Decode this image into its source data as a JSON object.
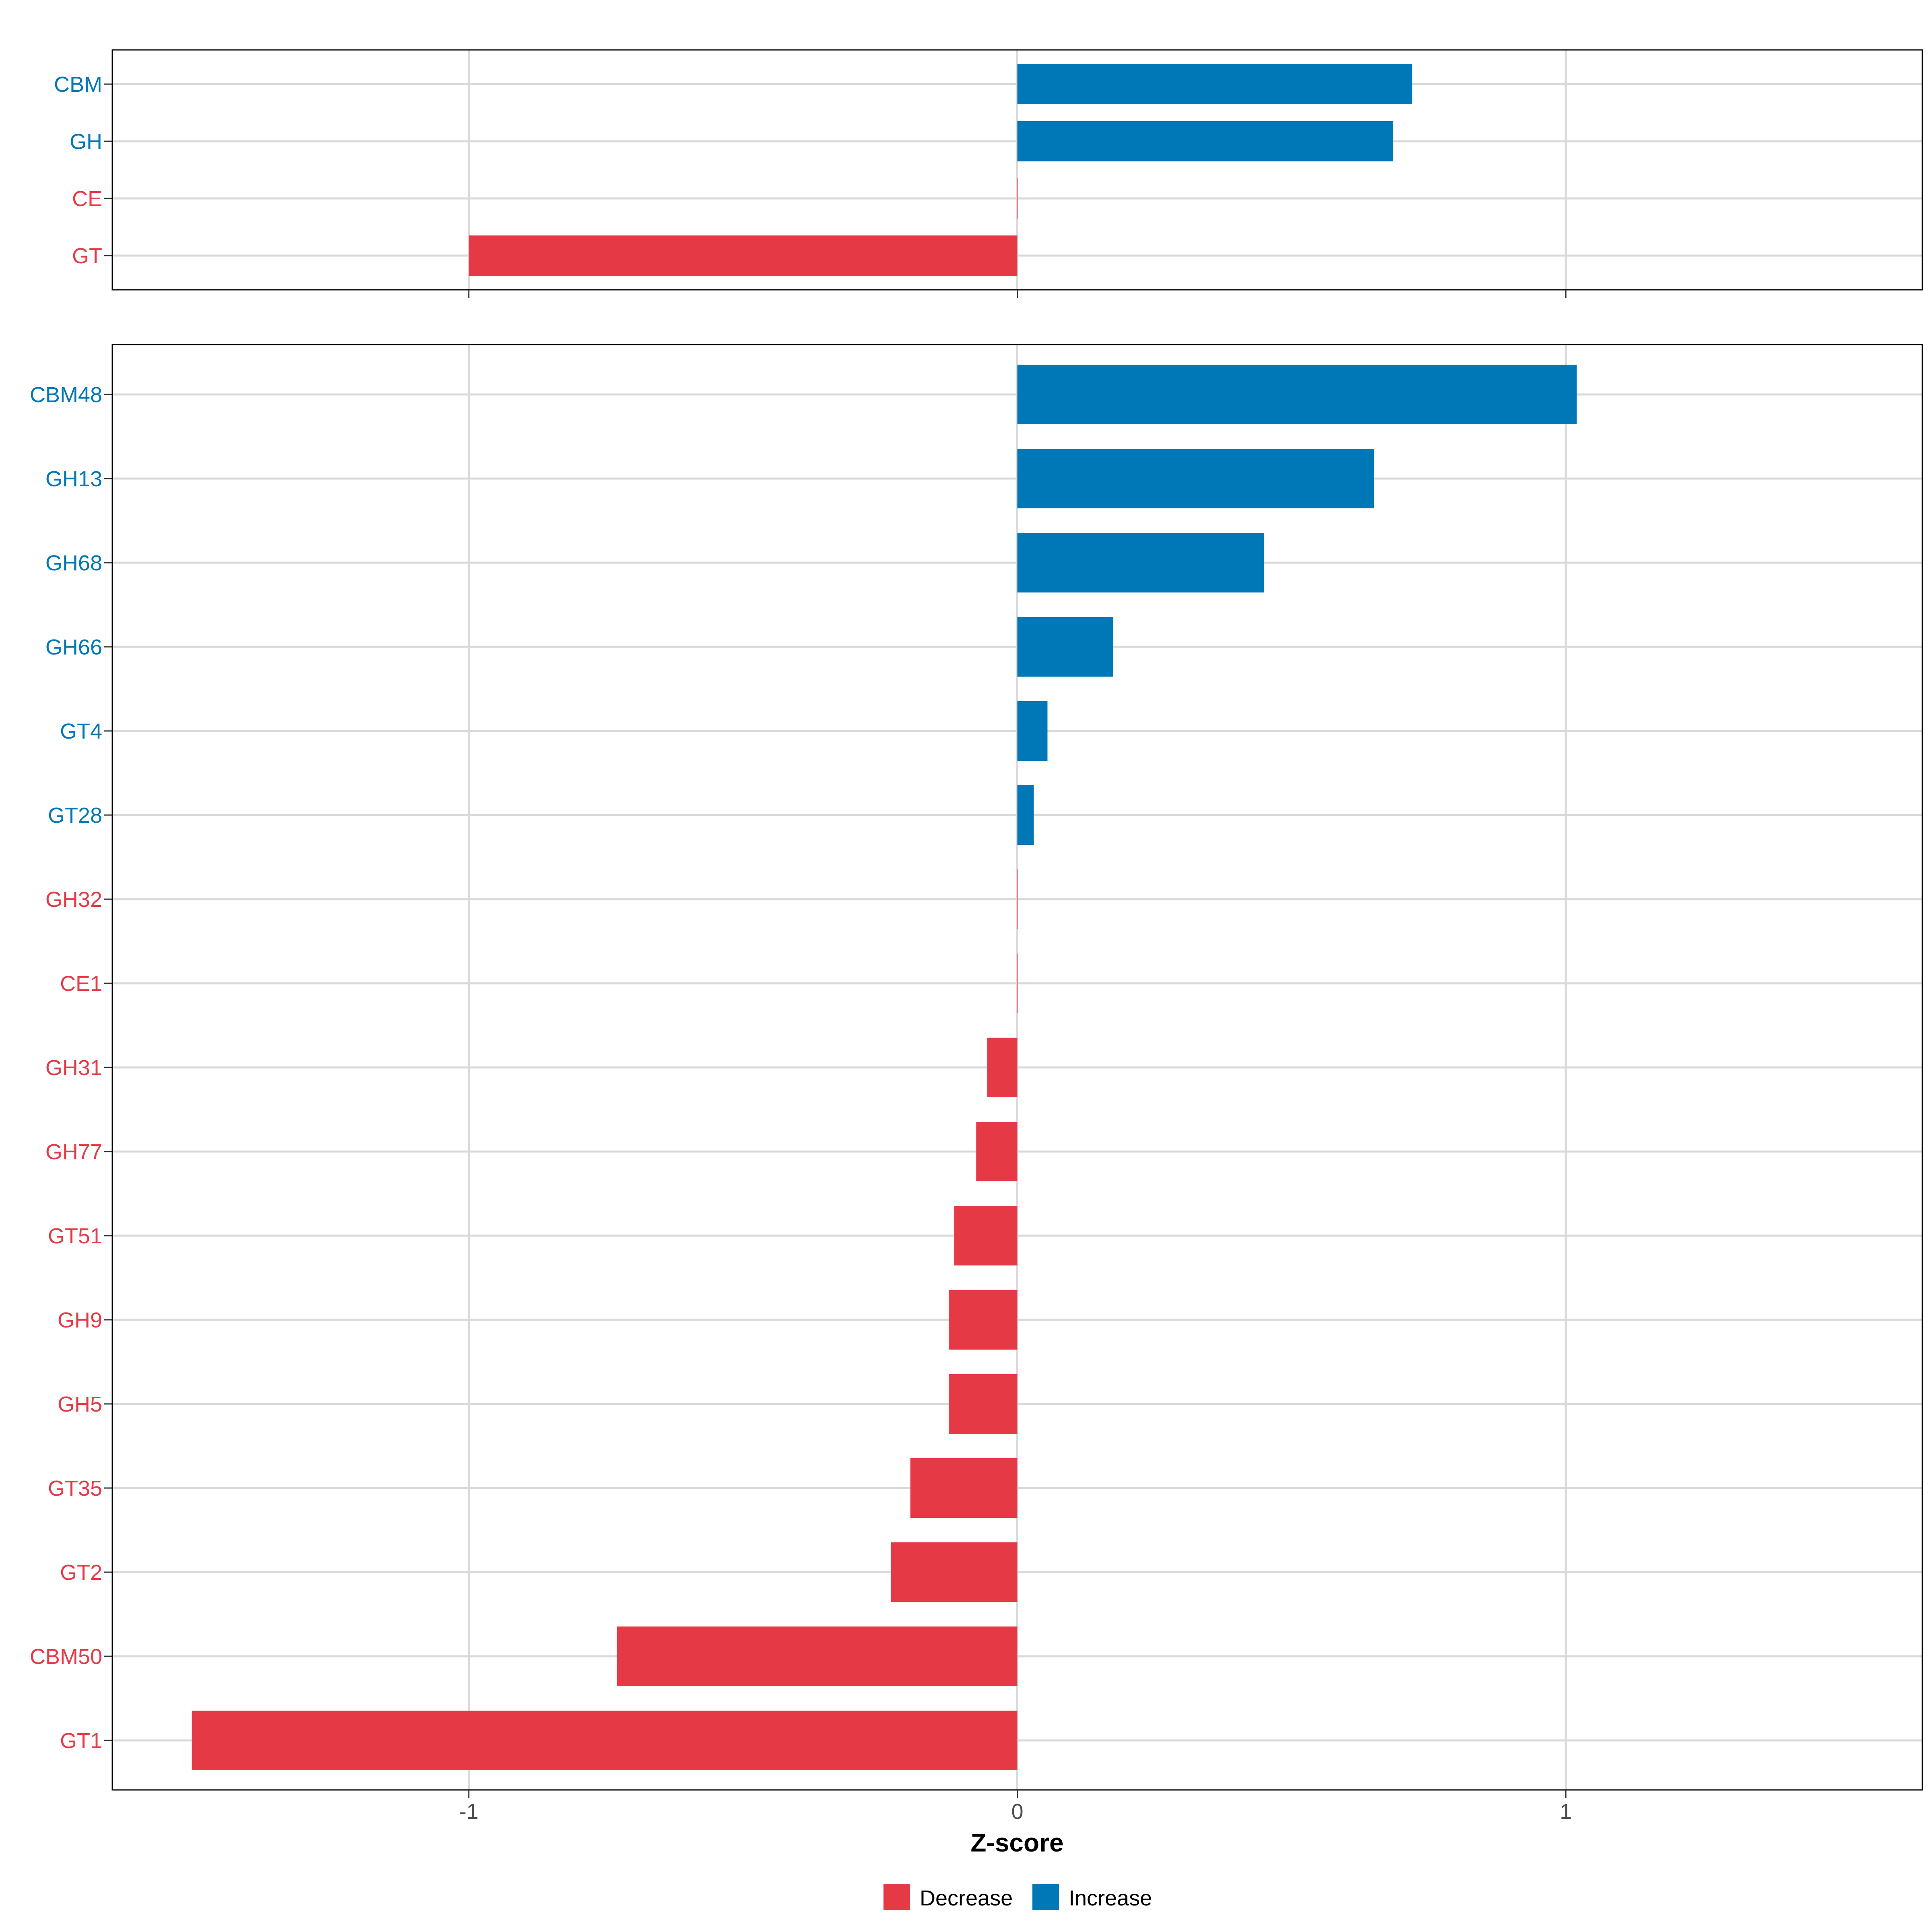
{
  "chart_data": [
    {
      "type": "bar",
      "orientation": "horizontal",
      "panel": "top",
      "categories": [
        "CBM",
        "GH",
        "CE",
        "GT"
      ],
      "values": [
        0.72,
        0.685,
        0.0,
        -1.0
      ],
      "xlim": [
        -1.65,
        1.65
      ],
      "grid": true
    },
    {
      "type": "bar",
      "orientation": "horizontal",
      "panel": "bottom",
      "categories": [
        "CBM48",
        "GH13",
        "GH68",
        "GH66",
        "GT4",
        "GT28",
        "GH32",
        "CE1",
        "GH31",
        "GH77",
        "GT51",
        "GH9",
        "GH5",
        "GT35",
        "GT2",
        "CBM50",
        "GT1"
      ],
      "values": [
        1.02,
        0.65,
        0.45,
        0.175,
        0.055,
        0.03,
        0.0,
        0.0,
        -0.055,
        -0.075,
        -0.115,
        -0.125,
        -0.125,
        -0.195,
        -0.23,
        -0.73,
        -1.505
      ],
      "xlim": [
        -1.65,
        1.65
      ],
      "xticks": [
        -1,
        0,
        1
      ],
      "xtick_labels": [
        "-1",
        "0",
        "1"
      ],
      "xlabel": "Z-score",
      "grid": true
    }
  ],
  "legend": {
    "position": "bottom",
    "items": [
      {
        "label": "Decrease",
        "color": "#e63946"
      },
      {
        "label": "Increase",
        "color": "#0077b6"
      }
    ]
  },
  "colors": {
    "increase": "#0077b6",
    "decrease": "#e63946",
    "grid": "#d9d9d9",
    "border": "#000000",
    "tick_text": "#4d4d4d"
  }
}
